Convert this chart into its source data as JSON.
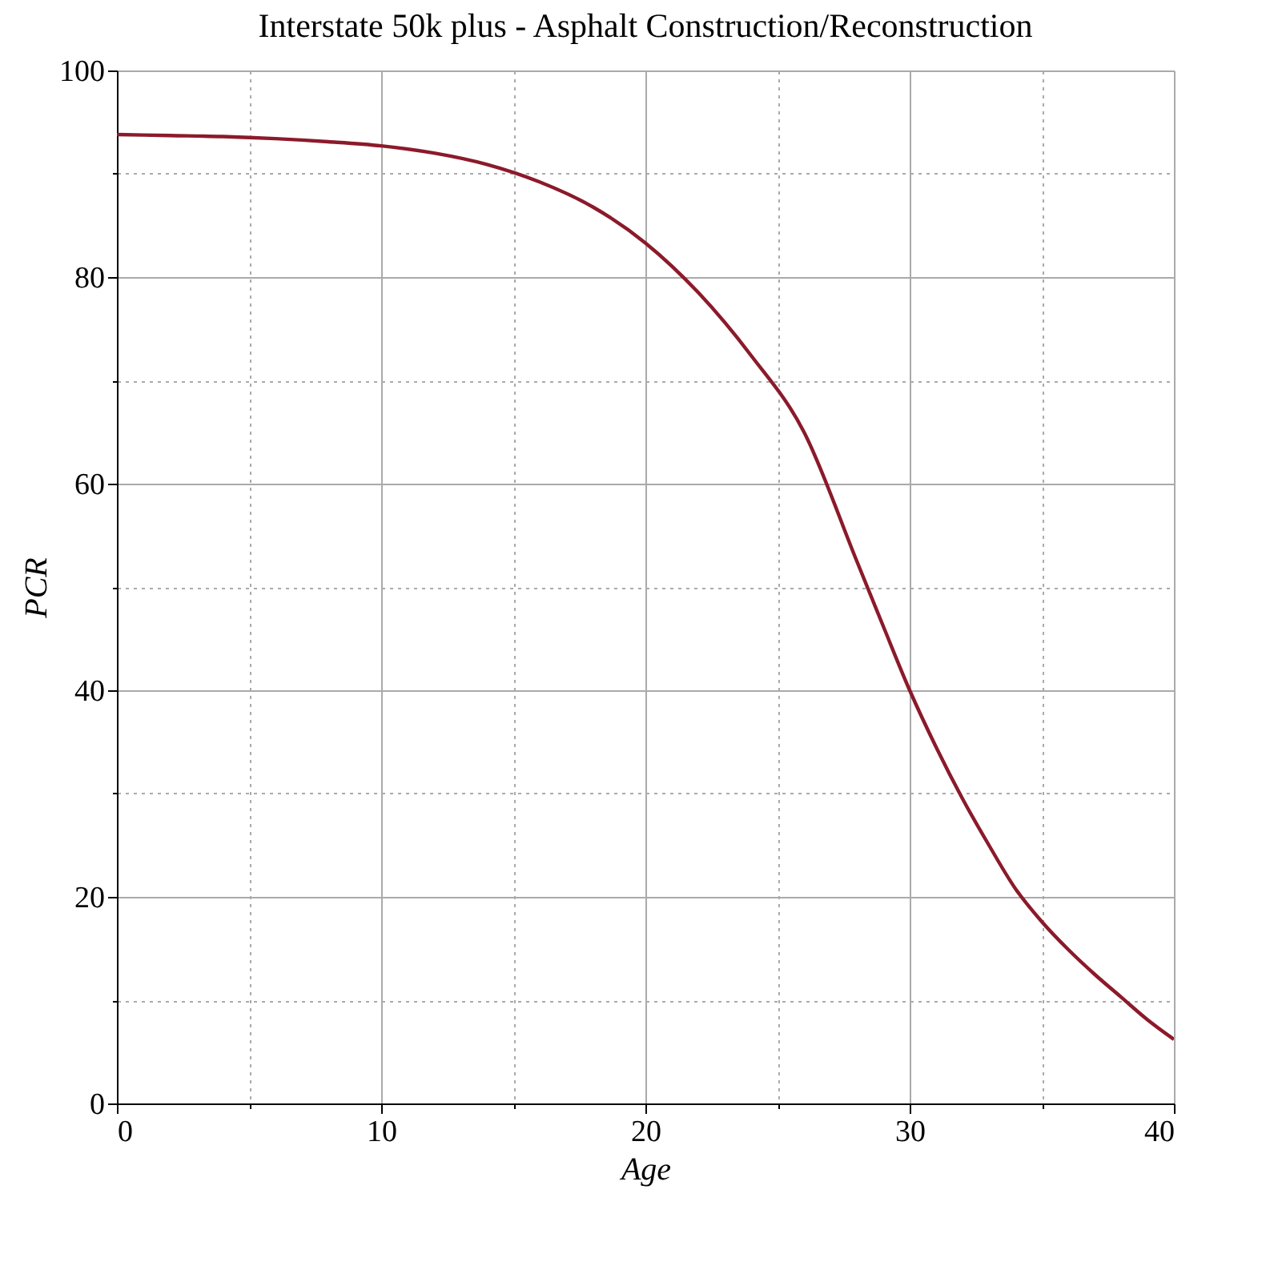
{
  "chart_data": {
    "type": "line",
    "title": "Interstate 50k plus - Asphalt Construction/Reconstruction",
    "xlabel": "Age",
    "ylabel": "PCR",
    "x": [
      0,
      2,
      4,
      6,
      8,
      10,
      12,
      14,
      16,
      18,
      20,
      22,
      24,
      26,
      28,
      29,
      30,
      31,
      32,
      33,
      34,
      35,
      36,
      37,
      38,
      39,
      40
    ],
    "series": [
      {
        "color": "#8b1a2b",
        "values": [
          93.8,
          93.7,
          93.6,
          93.4,
          93.1,
          92.7,
          92.0,
          90.9,
          89.2,
          86.8,
          83.3,
          78.5,
          72.4,
          65.0,
          52.5,
          46.2,
          40.0,
          34.5,
          29.5,
          25.0,
          20.8,
          17.6,
          14.9,
          12.5,
          10.3,
          8.1,
          6.2
        ]
      }
    ],
    "xlim": [
      0,
      40
    ],
    "ylim": [
      0,
      100
    ],
    "xticks": [
      0,
      {
        "value": 5,
        "label": null
      },
      10,
      {
        "value": 15,
        "label": null
      },
      20,
      {
        "value": 25,
        "label": null
      },
      30,
      {
        "value": 35,
        "label": null
      },
      40
    ],
    "yticks": [
      0,
      {
        "value": 10,
        "label": null
      },
      20,
      {
        "value": 30,
        "label": null
      },
      40,
      {
        "value": 50,
        "label": null
      },
      60,
      {
        "value": 70,
        "label": null
      },
      80,
      {
        "value": 90,
        "label": null
      },
      100
    ],
    "grid": true,
    "marker": "none",
    "line_style": "solid"
  }
}
